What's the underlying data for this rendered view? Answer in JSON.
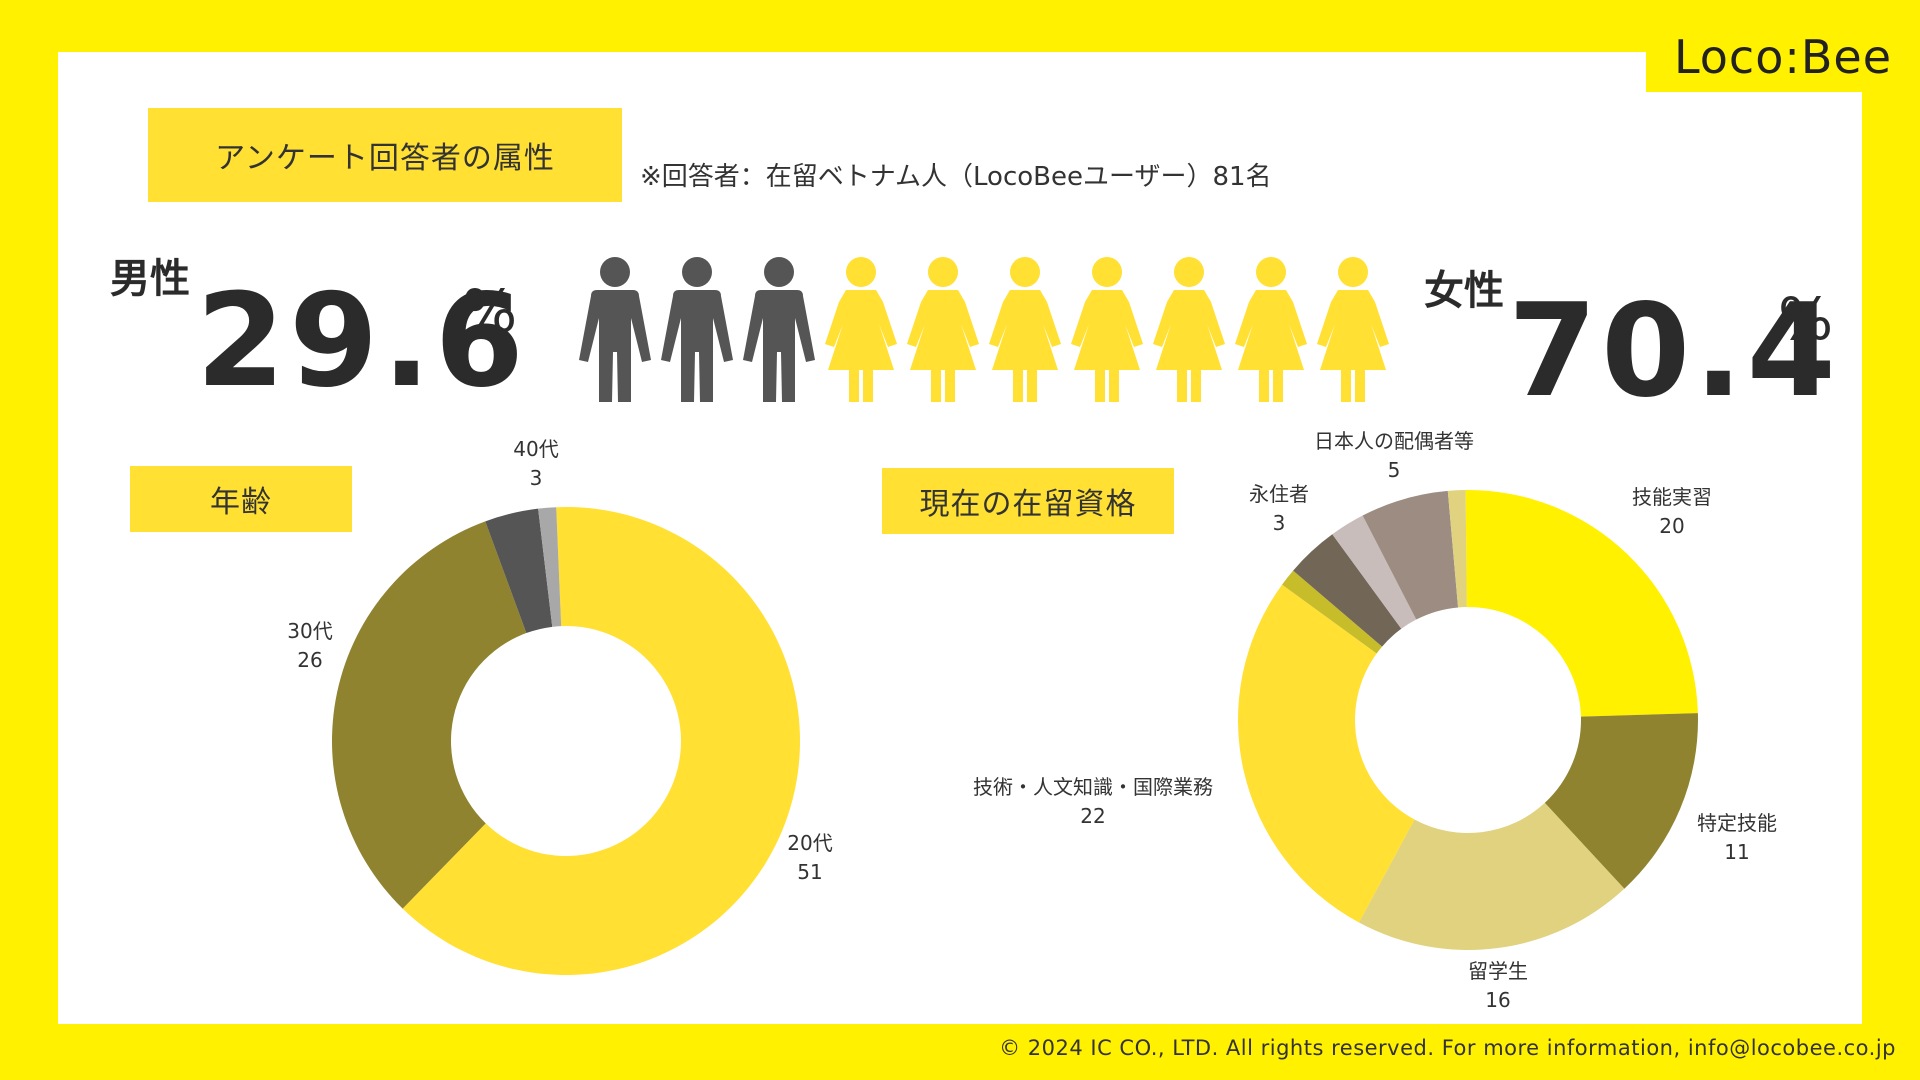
{
  "brand": {
    "logo_text": "Loco:Bee"
  },
  "header": {
    "title": "アンケート回答者の属性",
    "note": "※回答者：在留ベトナム人（LocoBeeユーザー）81名"
  },
  "gender": {
    "male_label": "男性",
    "male_value": "29.6",
    "female_label": "女性",
    "female_value": "70.4",
    "percent_sign": "%",
    "male_icons": 3,
    "female_icons": 7,
    "male_color": "#555555",
    "female_color": "#FFE033"
  },
  "age_section": {
    "label": "年齢"
  },
  "status_section": {
    "label": "現在の在留資格"
  },
  "footer": {
    "text": "© 2024 IC CO., LTD. All rights reserved. For more information, info@locobee.co.jp"
  },
  "colors": {
    "background": "#FFF100",
    "panel": "#FFFFFF",
    "tag": "#FFE033",
    "text": "#333333"
  },
  "chart_data": [
    {
      "type": "pie",
      "title": "年齢",
      "donut": true,
      "categories": [
        "20代",
        "30代",
        "40代",
        ""
      ],
      "values": [
        51,
        26,
        3,
        1
      ],
      "colors": [
        "#FFE033",
        "#8F8330",
        "#555555",
        "#A8A8A8"
      ],
      "labels": [
        {
          "name": "20代",
          "value": "51"
        },
        {
          "name": "30代",
          "value": "26"
        },
        {
          "name": "40代",
          "value": "3"
        }
      ]
    },
    {
      "type": "pie",
      "title": "現在の在留資格",
      "donut": true,
      "categories": [
        "技能実習",
        "特定技能",
        "留学生",
        "技術・人文知識・国際業務",
        "",
        "永住者",
        "",
        "日本人の配偶者等",
        ""
      ],
      "values": [
        20,
        11,
        16,
        22,
        1,
        3,
        2,
        5,
        1
      ],
      "colors": [
        "#FFF100",
        "#8F8330",
        "#E0D27E",
        "#FFE033",
        "#C7BC2A",
        "#726656",
        "#C9BDBB",
        "#9C8C81",
        "#E0D27E"
      ],
      "labels": [
        {
          "name": "技能実習",
          "value": "20"
        },
        {
          "name": "特定技能",
          "value": "11"
        },
        {
          "name": "留学生",
          "value": "16"
        },
        {
          "name": "技術・人文知識・国際業務",
          "value": "22"
        },
        {
          "name": "永住者",
          "value": "3"
        },
        {
          "name": "日本人の配偶者等",
          "value": "5"
        }
      ]
    }
  ]
}
